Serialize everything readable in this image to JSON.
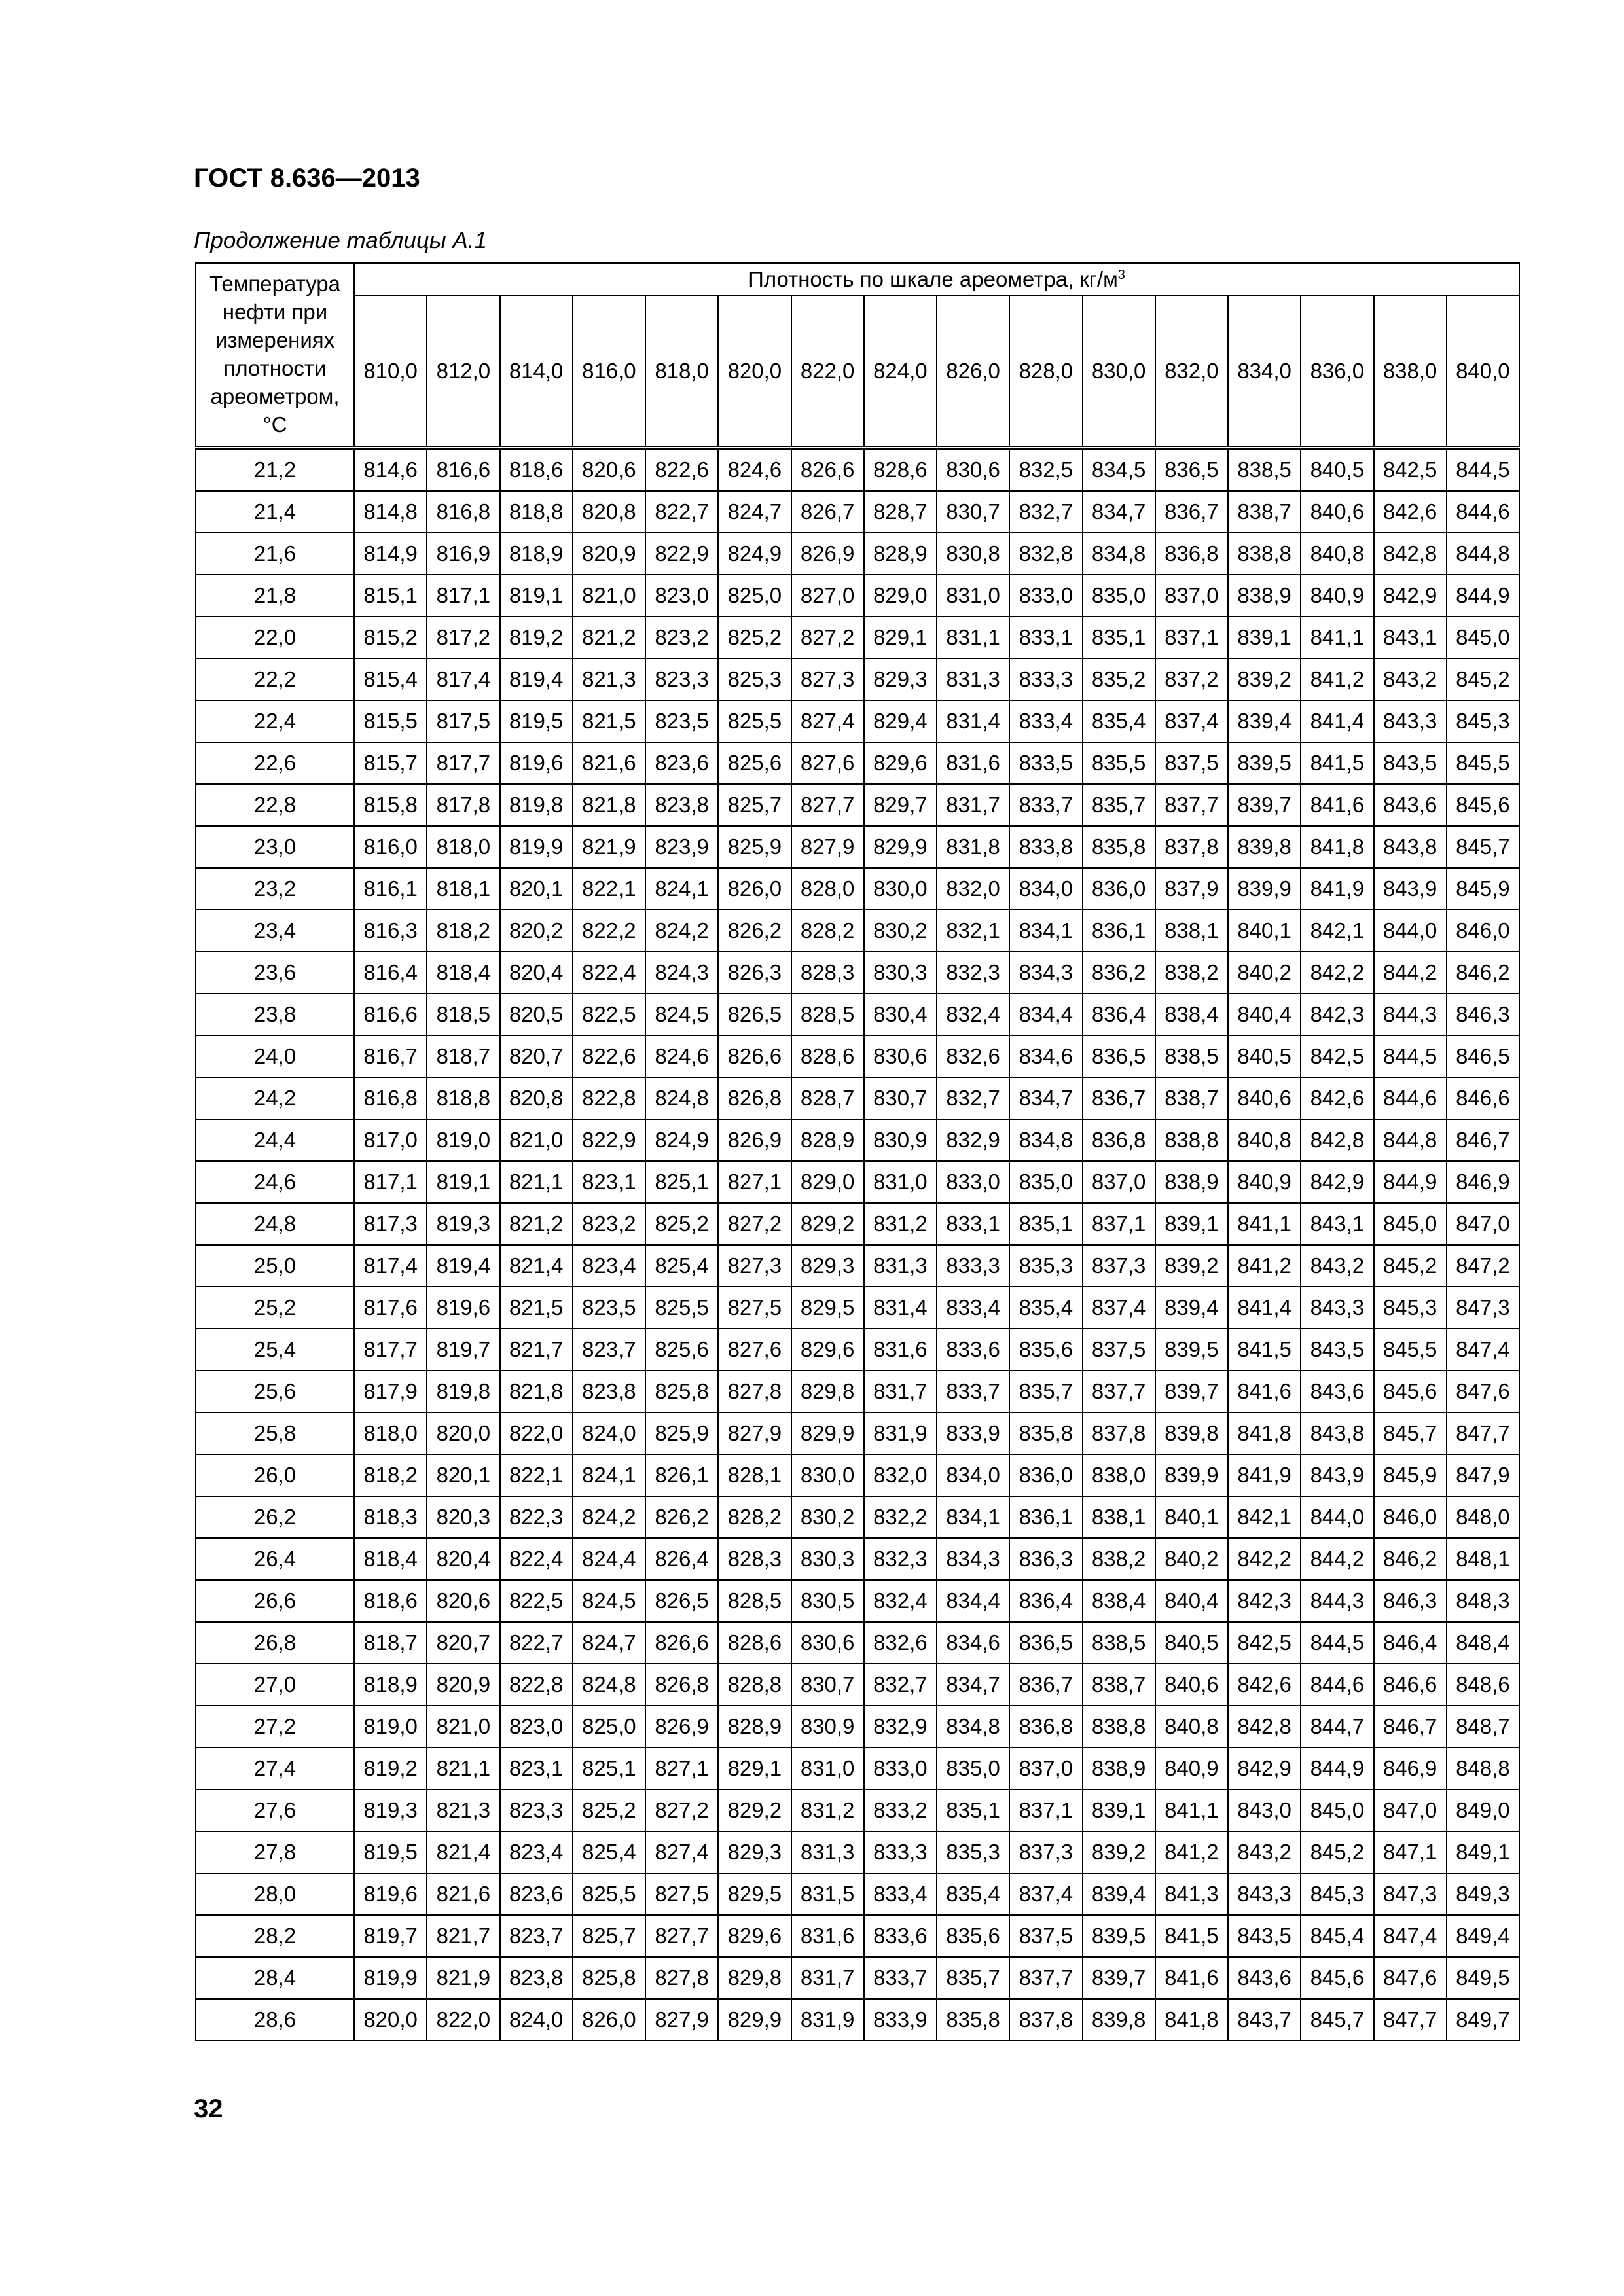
{
  "header": {
    "title": "ГОСТ 8.636—2013"
  },
  "caption": "Продолжение таблицы А.1",
  "table": {
    "temp_header": "Температура нефти при измерениях плотности ареометром, °С",
    "density_header": {
      "text": "Плотность по шкале ареометра, кг/м",
      "superscript": "3"
    },
    "columns": [
      "810,0",
      "812,0",
      "814,0",
      "816,0",
      "818,0",
      "820,0",
      "822,0",
      "824,0",
      "826,0",
      "828,0",
      "830,0",
      "832,0",
      "834,0",
      "836,0",
      "838,0",
      "840,0"
    ],
    "rows": [
      [
        "21,2",
        "814,6",
        "816,6",
        "818,6",
        "820,6",
        "822,6",
        "824,6",
        "826,6",
        "828,6",
        "830,6",
        "832,5",
        "834,5",
        "836,5",
        "838,5",
        "840,5",
        "842,5",
        "844,5"
      ],
      [
        "21,4",
        "814,8",
        "816,8",
        "818,8",
        "820,8",
        "822,7",
        "824,7",
        "826,7",
        "828,7",
        "830,7",
        "832,7",
        "834,7",
        "836,7",
        "838,7",
        "840,6",
        "842,6",
        "844,6"
      ],
      [
        "21,6",
        "814,9",
        "816,9",
        "818,9",
        "820,9",
        "822,9",
        "824,9",
        "826,9",
        "828,9",
        "830,8",
        "832,8",
        "834,8",
        "836,8",
        "838,8",
        "840,8",
        "842,8",
        "844,8"
      ],
      [
        "21,8",
        "815,1",
        "817,1",
        "819,1",
        "821,0",
        "823,0",
        "825,0",
        "827,0",
        "829,0",
        "831,0",
        "833,0",
        "835,0",
        "837,0",
        "838,9",
        "840,9",
        "842,9",
        "844,9"
      ],
      [
        "22,0",
        "815,2",
        "817,2",
        "819,2",
        "821,2",
        "823,2",
        "825,2",
        "827,2",
        "829,1",
        "831,1",
        "833,1",
        "835,1",
        "837,1",
        "839,1",
        "841,1",
        "843,1",
        "845,0"
      ],
      [
        "22,2",
        "815,4",
        "817,4",
        "819,4",
        "821,3",
        "823,3",
        "825,3",
        "827,3",
        "829,3",
        "831,3",
        "833,3",
        "835,2",
        "837,2",
        "839,2",
        "841,2",
        "843,2",
        "845,2"
      ],
      [
        "22,4",
        "815,5",
        "817,5",
        "819,5",
        "821,5",
        "823,5",
        "825,5",
        "827,4",
        "829,4",
        "831,4",
        "833,4",
        "835,4",
        "837,4",
        "839,4",
        "841,4",
        "843,3",
        "845,3"
      ],
      [
        "22,6",
        "815,7",
        "817,7",
        "819,6",
        "821,6",
        "823,6",
        "825,6",
        "827,6",
        "829,6",
        "831,6",
        "833,5",
        "835,5",
        "837,5",
        "839,5",
        "841,5",
        "843,5",
        "845,5"
      ],
      [
        "22,8",
        "815,8",
        "817,8",
        "819,8",
        "821,8",
        "823,8",
        "825,7",
        "827,7",
        "829,7",
        "831,7",
        "833,7",
        "835,7",
        "837,7",
        "839,7",
        "841,6",
        "843,6",
        "845,6"
      ],
      [
        "23,0",
        "816,0",
        "818,0",
        "819,9",
        "821,9",
        "823,9",
        "825,9",
        "827,9",
        "829,9",
        "831,8",
        "833,8",
        "835,8",
        "837,8",
        "839,8",
        "841,8",
        "843,8",
        "845,7"
      ],
      [
        "23,2",
        "816,1",
        "818,1",
        "820,1",
        "822,1",
        "824,1",
        "826,0",
        "828,0",
        "830,0",
        "832,0",
        "834,0",
        "836,0",
        "837,9",
        "839,9",
        "841,9",
        "843,9",
        "845,9"
      ],
      [
        "23,4",
        "816,3",
        "818,2",
        "820,2",
        "822,2",
        "824,2",
        "826,2",
        "828,2",
        "830,2",
        "832,1",
        "834,1",
        "836,1",
        "838,1",
        "840,1",
        "842,1",
        "844,0",
        "846,0"
      ],
      [
        "23,6",
        "816,4",
        "818,4",
        "820,4",
        "822,4",
        "824,3",
        "826,3",
        "828,3",
        "830,3",
        "832,3",
        "834,3",
        "836,2",
        "838,2",
        "840,2",
        "842,2",
        "844,2",
        "846,2"
      ],
      [
        "23,8",
        "816,6",
        "818,5",
        "820,5",
        "822,5",
        "824,5",
        "826,5",
        "828,5",
        "830,4",
        "832,4",
        "834,4",
        "836,4",
        "838,4",
        "840,4",
        "842,3",
        "844,3",
        "846,3"
      ],
      [
        "24,0",
        "816,7",
        "818,7",
        "820,7",
        "822,6",
        "824,6",
        "826,6",
        "828,6",
        "830,6",
        "832,6",
        "834,6",
        "836,5",
        "838,5",
        "840,5",
        "842,5",
        "844,5",
        "846,5"
      ],
      [
        "24,2",
        "816,8",
        "818,8",
        "820,8",
        "822,8",
        "824,8",
        "826,8",
        "828,7",
        "830,7",
        "832,7",
        "834,7",
        "836,7",
        "838,7",
        "840,6",
        "842,6",
        "844,6",
        "846,6"
      ],
      [
        "24,4",
        "817,0",
        "819,0",
        "821,0",
        "822,9",
        "824,9",
        "826,9",
        "828,9",
        "830,9",
        "832,9",
        "834,8",
        "836,8",
        "838,8",
        "840,8",
        "842,8",
        "844,8",
        "846,7"
      ],
      [
        "24,6",
        "817,1",
        "819,1",
        "821,1",
        "823,1",
        "825,1",
        "827,1",
        "829,0",
        "831,0",
        "833,0",
        "835,0",
        "837,0",
        "838,9",
        "840,9",
        "842,9",
        "844,9",
        "846,9"
      ],
      [
        "24,8",
        "817,3",
        "819,3",
        "821,2",
        "823,2",
        "825,2",
        "827,2",
        "829,2",
        "831,2",
        "833,1",
        "835,1",
        "837,1",
        "839,1",
        "841,1",
        "843,1",
        "845,0",
        "847,0"
      ],
      [
        "25,0",
        "817,4",
        "819,4",
        "821,4",
        "823,4",
        "825,4",
        "827,3",
        "829,3",
        "831,3",
        "833,3",
        "835,3",
        "837,3",
        "839,2",
        "841,2",
        "843,2",
        "845,2",
        "847,2"
      ],
      [
        "25,2",
        "817,6",
        "819,6",
        "821,5",
        "823,5",
        "825,5",
        "827,5",
        "829,5",
        "831,4",
        "833,4",
        "835,4",
        "837,4",
        "839,4",
        "841,4",
        "843,3",
        "845,3",
        "847,3"
      ],
      [
        "25,4",
        "817,7",
        "819,7",
        "821,7",
        "823,7",
        "825,6",
        "827,6",
        "829,6",
        "831,6",
        "833,6",
        "835,6",
        "837,5",
        "839,5",
        "841,5",
        "843,5",
        "845,5",
        "847,4"
      ],
      [
        "25,6",
        "817,9",
        "819,8",
        "821,8",
        "823,8",
        "825,8",
        "827,8",
        "829,8",
        "831,7",
        "833,7",
        "835,7",
        "837,7",
        "839,7",
        "841,6",
        "843,6",
        "845,6",
        "847,6"
      ],
      [
        "25,8",
        "818,0",
        "820,0",
        "822,0",
        "824,0",
        "825,9",
        "827,9",
        "829,9",
        "831,9",
        "833,9",
        "835,8",
        "837,8",
        "839,8",
        "841,8",
        "843,8",
        "845,7",
        "847,7"
      ],
      [
        "26,0",
        "818,2",
        "820,1",
        "822,1",
        "824,1",
        "826,1",
        "828,1",
        "830,0",
        "832,0",
        "834,0",
        "836,0",
        "838,0",
        "839,9",
        "841,9",
        "843,9",
        "845,9",
        "847,9"
      ],
      [
        "26,2",
        "818,3",
        "820,3",
        "822,3",
        "824,2",
        "826,2",
        "828,2",
        "830,2",
        "832,2",
        "834,1",
        "836,1",
        "838,1",
        "840,1",
        "842,1",
        "844,0",
        "846,0",
        "848,0"
      ],
      [
        "26,4",
        "818,4",
        "820,4",
        "822,4",
        "824,4",
        "826,4",
        "828,3",
        "830,3",
        "832,3",
        "834,3",
        "836,3",
        "838,2",
        "840,2",
        "842,2",
        "844,2",
        "846,2",
        "848,1"
      ],
      [
        "26,6",
        "818,6",
        "820,6",
        "822,5",
        "824,5",
        "826,5",
        "828,5",
        "830,5",
        "832,4",
        "834,4",
        "836,4",
        "838,4",
        "840,4",
        "842,3",
        "844,3",
        "846,3",
        "848,3"
      ],
      [
        "26,8",
        "818,7",
        "820,7",
        "822,7",
        "824,7",
        "826,6",
        "828,6",
        "830,6",
        "832,6",
        "834,6",
        "836,5",
        "838,5",
        "840,5",
        "842,5",
        "844,5",
        "846,4",
        "848,4"
      ],
      [
        "27,0",
        "818,9",
        "820,9",
        "822,8",
        "824,8",
        "826,8",
        "828,8",
        "830,7",
        "832,7",
        "834,7",
        "836,7",
        "838,7",
        "840,6",
        "842,6",
        "844,6",
        "846,6",
        "848,6"
      ],
      [
        "27,2",
        "819,0",
        "821,0",
        "823,0",
        "825,0",
        "826,9",
        "828,9",
        "830,9",
        "832,9",
        "834,8",
        "836,8",
        "838,8",
        "840,8",
        "842,8",
        "844,7",
        "846,7",
        "848,7"
      ],
      [
        "27,4",
        "819,2",
        "821,1",
        "823,1",
        "825,1",
        "827,1",
        "829,1",
        "831,0",
        "833,0",
        "835,0",
        "837,0",
        "838,9",
        "840,9",
        "842,9",
        "844,9",
        "846,9",
        "848,8"
      ],
      [
        "27,6",
        "819,3",
        "821,3",
        "823,3",
        "825,2",
        "827,2",
        "829,2",
        "831,2",
        "833,2",
        "835,1",
        "837,1",
        "839,1",
        "841,1",
        "843,0",
        "845,0",
        "847,0",
        "849,0"
      ],
      [
        "27,8",
        "819,5",
        "821,4",
        "823,4",
        "825,4",
        "827,4",
        "829,3",
        "831,3",
        "833,3",
        "835,3",
        "837,3",
        "839,2",
        "841,2",
        "843,2",
        "845,2",
        "847,1",
        "849,1"
      ],
      [
        "28,0",
        "819,6",
        "821,6",
        "823,6",
        "825,5",
        "827,5",
        "829,5",
        "831,5",
        "833,4",
        "835,4",
        "837,4",
        "839,4",
        "841,3",
        "843,3",
        "845,3",
        "847,3",
        "849,3"
      ],
      [
        "28,2",
        "819,7",
        "821,7",
        "823,7",
        "825,7",
        "827,7",
        "829,6",
        "831,6",
        "833,6",
        "835,6",
        "837,5",
        "839,5",
        "841,5",
        "843,5",
        "845,4",
        "847,4",
        "849,4"
      ],
      [
        "28,4",
        "819,9",
        "821,9",
        "823,8",
        "825,8",
        "827,8",
        "829,8",
        "831,7",
        "833,7",
        "835,7",
        "837,7",
        "839,7",
        "841,6",
        "843,6",
        "845,6",
        "847,6",
        "849,5"
      ],
      [
        "28,6",
        "820,0",
        "822,0",
        "824,0",
        "826,0",
        "827,9",
        "829,9",
        "831,9",
        "833,9",
        "835,8",
        "837,8",
        "839,8",
        "841,8",
        "843,7",
        "845,7",
        "847,7",
        "849,7"
      ]
    ]
  },
  "page_number": "32"
}
